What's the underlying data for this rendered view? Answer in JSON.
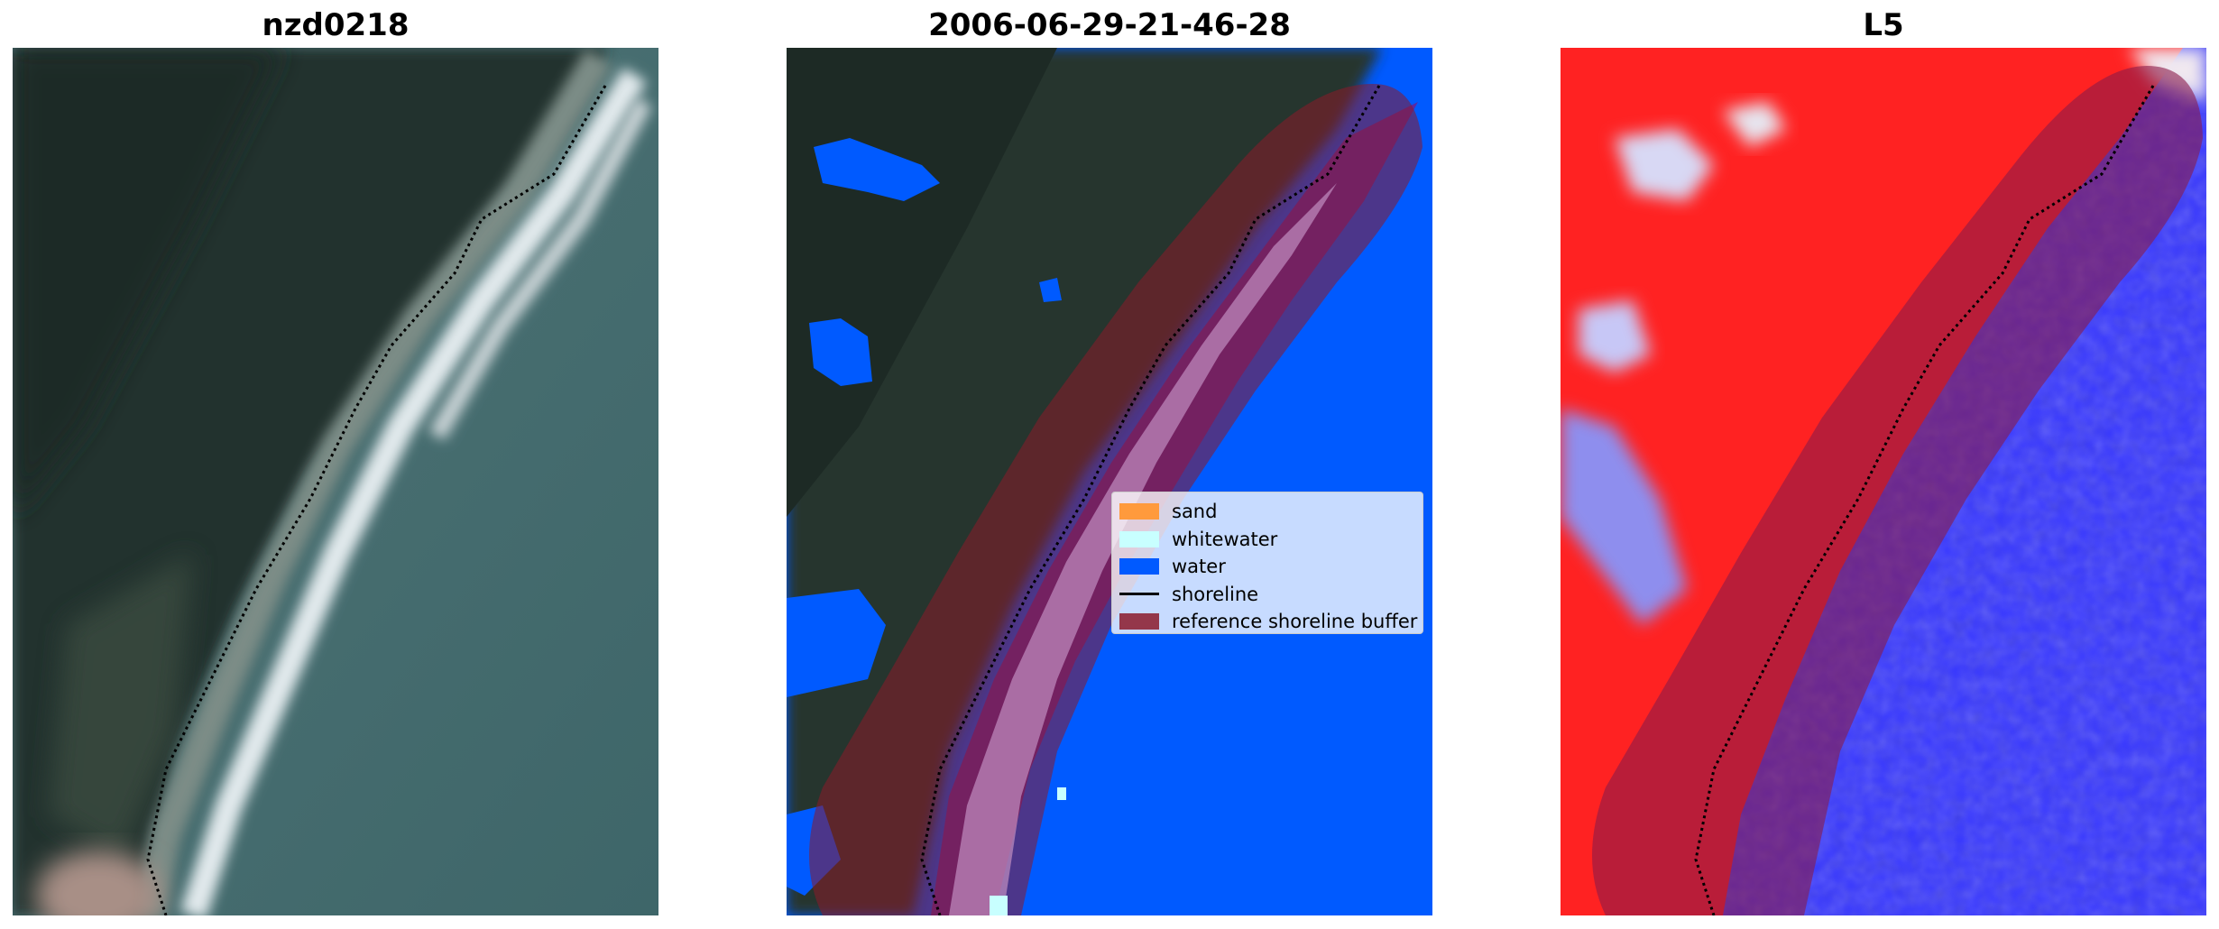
{
  "panels": [
    {
      "title": "nzd0218",
      "description": "RGB satellite image"
    },
    {
      "title": "2006-06-29-21-46-28",
      "description": "classified image"
    },
    {
      "title": "L5",
      "description": "water index image"
    }
  ],
  "legend": {
    "items": [
      {
        "label": "sand",
        "color": "#ff9a3c",
        "kind": "patch"
      },
      {
        "label": "whitewater",
        "color": "#c8ffff",
        "kind": "patch"
      },
      {
        "label": "water",
        "color": "#005aff",
        "kind": "patch"
      },
      {
        "label": "shoreline",
        "color": "#000000",
        "kind": "line"
      },
      {
        "label": "reference shoreline buffer",
        "color": "#8b1a2a",
        "kind": "patch"
      }
    ]
  },
  "colors": {
    "land_dark": "#23322c",
    "sea": "#456c70",
    "whitewater_rgb": "#dfe8ea",
    "classified_water": "#005aff",
    "buffer": "#8b1a2a",
    "index_land": "#ff2020",
    "index_water": "#2b2bff"
  }
}
